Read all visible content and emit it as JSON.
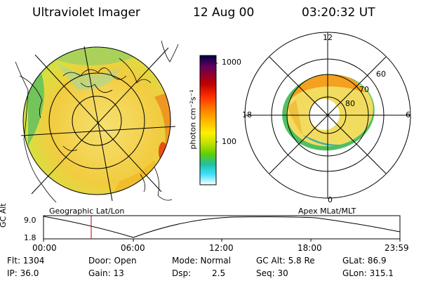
{
  "header": {
    "instrument": "Ultraviolet Imager",
    "date": "12 Aug 00",
    "time": "03:20:32 UT"
  },
  "colorbar": {
    "unit": "photon cm⁻²s⁻¹",
    "ticks": [
      "1000",
      "100"
    ],
    "stops": [
      "#000040",
      "#600060",
      "#c00000",
      "#ff3000",
      "#ff8000",
      "#ffc000",
      "#fff000",
      "#c0e000",
      "#60d000",
      "#20c0a0",
      "#40e0ff",
      "#ffffff"
    ]
  },
  "left_map": {
    "label": "Geographic Lat/Lon",
    "palette": {
      "edge": "#50c050",
      "mid": "#f0e060",
      "warm": "#f4b020",
      "hot": "#e84010"
    }
  },
  "right_map": {
    "label": "Apex MLat/MLT",
    "mlt_labels": {
      "top": "12",
      "left": "18",
      "right": "6",
      "bottom": "0"
    },
    "lat_labels": [
      "60",
      "70",
      "80"
    ]
  },
  "timeline": {
    "y_label": "GC Alt",
    "y_ticks": [
      "9.0",
      "1.8"
    ],
    "x_ticks": [
      "00:00",
      "06:00",
      "12:00",
      "18:00",
      "23:59"
    ],
    "marker_time": "03:20",
    "marker_color": "#c00000"
  },
  "info": {
    "flt": "Flt: 1304",
    "ip": "IP: 36.0",
    "door": "Door: Open",
    "gain": "Gain: 13",
    "mode": "Mode: Normal",
    "dsp_label": "Dsp:",
    "dsp_value": "2.5",
    "gcalt": "GC Alt: 5.8 Re",
    "seq": "Seq: 30",
    "glat": "GLat: 86.9",
    "glon": "GLon: 315.1"
  }
}
